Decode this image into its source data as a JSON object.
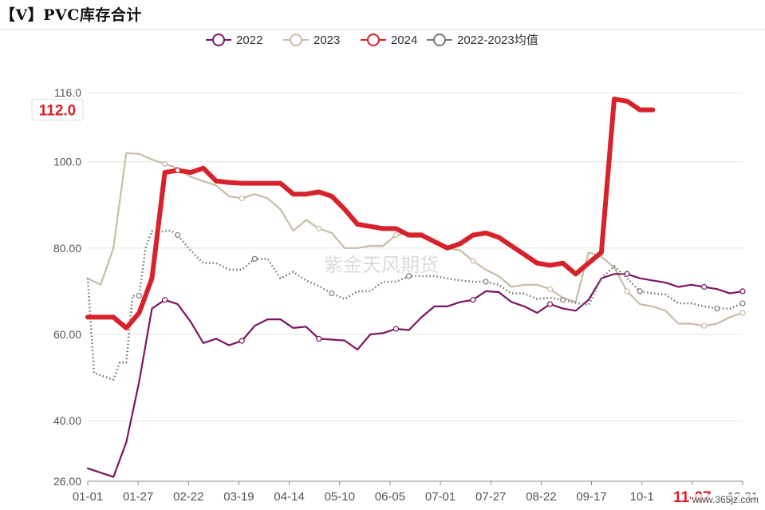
{
  "page_title": "【V】PVC库存合计",
  "watermark": "紫金天风期货",
  "site_badge": "www.365jz.com",
  "colors": {
    "s2022": "#7c1560",
    "s2023": "#c9bca6",
    "s2024": "#d7222b",
    "avg": "#777777",
    "grid": "#e4e4e4",
    "axis_text": "#555555",
    "highlight": "#d7222b"
  },
  "chart_data": {
    "type": "line",
    "title": "PVC库存合计",
    "xlabel": "",
    "ylabel": "",
    "ylim": [
      26,
      116
    ],
    "x_ticks": [
      "01-01",
      "01-27",
      "02-22",
      "03-19",
      "04-14",
      "05-10",
      "06-05",
      "07-01",
      "07-27",
      "08-22",
      "09-17",
      "10-1",
      "11-07",
      "12-31"
    ],
    "y_ticks": [
      {
        "value": 26,
        "label": "26.00"
      },
      {
        "value": 40,
        "label": "40.00"
      },
      {
        "value": 60,
        "label": "60.00"
      },
      {
        "value": 80,
        "label": "80.00"
      },
      {
        "value": 100,
        "label": "100.0"
      },
      {
        "value": 116,
        "label": "116.0"
      }
    ],
    "highlight_x_label": "11-07",
    "highlight_y_label": "112.0",
    "legend": [
      "2022",
      "2023",
      "2024",
      "2022-2023均值"
    ],
    "series": [
      {
        "name": "2022",
        "key": "s2022",
        "style": "solid",
        "x": [
          1,
          2,
          3,
          4,
          5,
          6,
          7,
          8,
          9,
          10,
          11,
          12,
          13,
          14,
          15,
          16,
          17,
          18,
          19,
          20,
          21,
          22,
          23,
          24,
          25,
          26,
          27,
          28,
          29,
          30,
          31,
          32,
          33,
          34,
          35,
          36,
          37,
          38,
          39,
          40,
          41,
          42,
          43,
          44,
          45,
          46,
          47,
          48,
          49,
          50,
          51,
          52
        ],
        "values": [
          29,
          28,
          27,
          35,
          49,
          66,
          68,
          67,
          63,
          58,
          59,
          57.5,
          58.5,
          62,
          63.5,
          63.5,
          61.5,
          61.8,
          59,
          58.8,
          58.6,
          56.5,
          60,
          60.3,
          61.3,
          61,
          64,
          66.5,
          66.5,
          67.5,
          68,
          70,
          69.8,
          67.5,
          66.5,
          65,
          67,
          66,
          65.5,
          68,
          73,
          74,
          74,
          73,
          72.5,
          72,
          71,
          71.5,
          71,
          70.5,
          69.5,
          70
        ]
      },
      {
        "name": "2023",
        "key": "s2023",
        "style": "solid",
        "x": [
          1,
          2,
          3,
          4,
          5,
          6,
          7,
          8,
          9,
          10,
          11,
          12,
          13,
          14,
          15,
          16,
          17,
          18,
          19,
          20,
          21,
          22,
          23,
          24,
          25,
          26,
          27,
          28,
          29,
          30,
          31,
          32,
          33,
          34,
          35,
          36,
          37,
          38,
          39,
          40,
          41,
          42,
          43,
          44,
          45,
          46,
          47,
          48,
          49,
          50,
          51,
          52
        ],
        "values": [
          73,
          71.5,
          80,
          102,
          101.8,
          100.5,
          99.5,
          98.5,
          96.5,
          95.5,
          94.5,
          92,
          91.5,
          92.5,
          91.5,
          89,
          84,
          86.5,
          84.5,
          83.5,
          80,
          80,
          80.5,
          80.5,
          83,
          83.5,
          83.5,
          81,
          80,
          79.5,
          77,
          75,
          73.5,
          71,
          71.5,
          71.5,
          70.5,
          68.5,
          67.5,
          79,
          78,
          75.5,
          70,
          67,
          66.5,
          65.5,
          62.5,
          62.5,
          62,
          62.5,
          64,
          65
        ]
      },
      {
        "name": "2024",
        "key": "s2024",
        "style": "bold",
        "x": [
          1,
          2,
          3,
          4,
          5,
          6,
          7,
          8,
          9,
          10,
          11,
          12,
          13,
          14,
          15,
          16,
          17,
          18,
          19,
          20,
          21,
          22,
          23,
          24,
          25,
          26,
          27,
          28,
          29,
          30,
          31,
          32,
          33,
          34,
          35,
          36,
          37,
          38,
          39,
          40,
          41,
          42,
          43,
          44,
          45
        ],
        "values": [
          64,
          64,
          64,
          61.5,
          65,
          73,
          97.5,
          98,
          97.5,
          98.5,
          95.5,
          95.2,
          95,
          95,
          95,
          95,
          92.5,
          92.5,
          93,
          92,
          89,
          85.5,
          85,
          84.5,
          84.5,
          83,
          83,
          81.5,
          80,
          81,
          83,
          83.5,
          82.5,
          80.5,
          78.5,
          76.5,
          76,
          76.5,
          74,
          76.5,
          79,
          114.5,
          114,
          112,
          112
        ]
      },
      {
        "name": "2022-2023均值",
        "key": "avg",
        "style": "dotted",
        "x": [
          1,
          1.5,
          3,
          3.5,
          4,
          4.5,
          5,
          5.5,
          6,
          6.5,
          7,
          7.5,
          8,
          9,
          10,
          11,
          12,
          13,
          14,
          15,
          16,
          17,
          18,
          19,
          20,
          21,
          22,
          23,
          24,
          25,
          26,
          27,
          28,
          29,
          30,
          31,
          32,
          33,
          34,
          35,
          36,
          37,
          38,
          39,
          40,
          41,
          42,
          43,
          44,
          45,
          46,
          47,
          48,
          49,
          50,
          51,
          52
        ],
        "values": [
          73,
          51,
          49.5,
          53.5,
          53.5,
          69,
          69,
          80,
          84,
          83.5,
          84,
          84,
          83,
          79.5,
          76.5,
          76.5,
          75,
          75,
          77.5,
          77.5,
          73,
          74.5,
          72.5,
          71.2,
          69.5,
          68.2,
          70,
          70,
          72.2,
          72.2,
          73.5,
          73.5,
          73.5,
          73,
          72.5,
          72.2,
          72.2,
          71.5,
          69.5,
          69.5,
          68.2,
          68.5,
          68,
          67.3,
          66.8,
          73,
          75.8,
          73,
          70,
          69.5,
          69.2,
          67.2,
          67.2,
          66.5,
          66,
          66,
          67.2
        ]
      }
    ]
  }
}
